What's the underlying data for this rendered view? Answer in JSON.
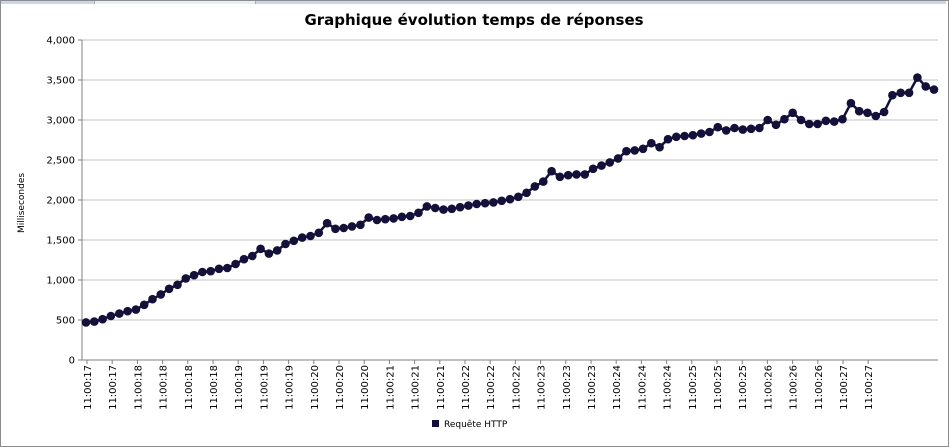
{
  "chart_data": {
    "type": "line",
    "title": "Graphique évolution temps de réponses",
    "xlabel": "",
    "ylabel": "Millisecondes",
    "ylim": [
      0,
      4000
    ],
    "yticks": [
      0,
      500,
      1000,
      1500,
      2000,
      2500,
      3000,
      3500,
      4000
    ],
    "ytick_labels": [
      "0",
      "500",
      "1,000",
      "1,500",
      "2,000",
      "2,500",
      "3,000",
      "3,500",
      "4,000"
    ],
    "xtick_labels": [
      "11:00:17",
      "11:00:17",
      "11:00:18",
      "11:00:18",
      "11:00:18",
      "11:00:18",
      "11:00:19",
      "11:00:19",
      "11:00:19",
      "11:00:20",
      "11:00:20",
      "11:00:20",
      "11:00:21",
      "11:00:21",
      "11:00:21",
      "11:00:22",
      "11:00:22",
      "11:00:22",
      "11:00:23",
      "11:00:23",
      "11:00:23",
      "11:00:24",
      "11:00:24",
      "11:00:24",
      "11:00:25",
      "11:00:25",
      "11:00:25",
      "11:00:26",
      "11:00:26",
      "11:00:26",
      "11:00:27",
      "11:00:27"
    ],
    "grid": true,
    "legend_position": "bottom",
    "series": [
      {
        "name": "Requête HTTP",
        "color": "#13103a",
        "values": [
          470,
          480,
          510,
          550,
          580,
          610,
          630,
          690,
          760,
          820,
          890,
          940,
          1020,
          1060,
          1100,
          1110,
          1140,
          1150,
          1200,
          1260,
          1300,
          1390,
          1330,
          1370,
          1450,
          1490,
          1530,
          1550,
          1590,
          1710,
          1640,
          1650,
          1670,
          1690,
          1780,
          1750,
          1760,
          1770,
          1790,
          1800,
          1840,
          1920,
          1900,
          1880,
          1890,
          1910,
          1930,
          1950,
          1960,
          1970,
          1990,
          2010,
          2040,
          2090,
          2170,
          2230,
          2360,
          2290,
          2310,
          2320,
          2320,
          2390,
          2430,
          2470,
          2520,
          2610,
          2620,
          2640,
          2710,
          2660,
          2760,
          2790,
          2800,
          2810,
          2830,
          2850,
          2910,
          2870,
          2900,
          2880,
          2890,
          2900,
          3000,
          2940,
          3010,
          3090,
          3000,
          2950,
          2950,
          2990,
          2980,
          3010,
          3210,
          3110,
          3090,
          3050,
          3100,
          3310,
          3340,
          3340,
          3530,
          3420,
          3380
        ]
      }
    ]
  }
}
